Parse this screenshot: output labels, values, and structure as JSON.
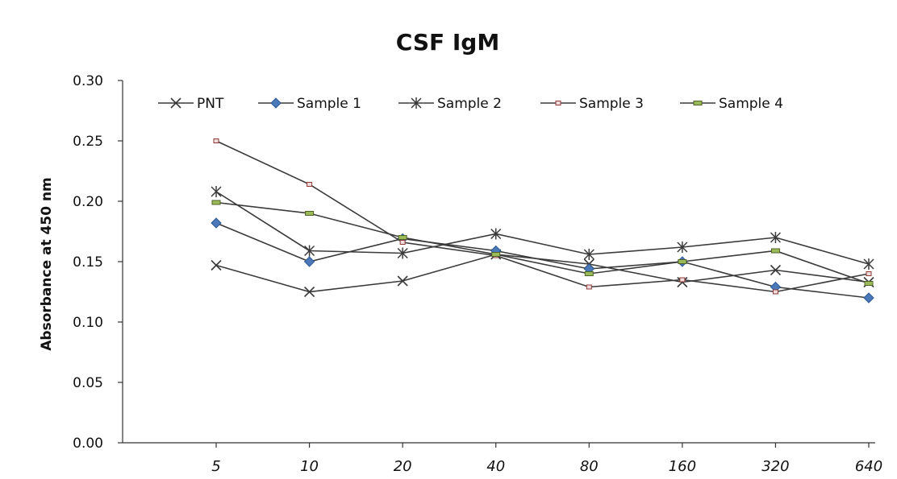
{
  "chart_data": {
    "type": "line",
    "title": "CSF IgM",
    "ylabel": "Absorbance at 450 nm",
    "xlabel": "",
    "categories": [
      "5",
      "10",
      "20",
      "40",
      "80",
      "160",
      "320",
      "640"
    ],
    "ylim": [
      0,
      0.3
    ],
    "yticks": [
      "0.00",
      "0.05",
      "0.10",
      "0.15",
      "0.20",
      "0.25",
      "0.30"
    ],
    "grid": false,
    "legend_position": "top",
    "series": [
      {
        "name": "PNT",
        "marker": "x",
        "color": "#3a3a3a",
        "values": [
          0.147,
          0.125,
          0.134,
          0.156,
          0.148,
          0.133,
          0.143,
          0.133
        ]
      },
      {
        "name": "Sample 1",
        "marker": "diamond",
        "color": "#4a78b8",
        "values": [
          0.182,
          0.15,
          0.169,
          0.159,
          0.144,
          0.15,
          0.129,
          0.12
        ]
      },
      {
        "name": "Sample 2",
        "marker": "star",
        "color": "#3a3a3a",
        "values": [
          0.208,
          0.159,
          0.157,
          0.173,
          0.156,
          0.162,
          0.17,
          0.148
        ]
      },
      {
        "name": "Sample 3",
        "marker": "dash-red",
        "color": "#c0504d",
        "values": [
          0.25,
          0.214,
          0.166,
          0.155,
          0.129,
          0.135,
          0.125,
          0.14
        ]
      },
      {
        "name": "Sample 4",
        "marker": "dash-green",
        "color": "#9bbb59",
        "values": [
          0.199,
          0.19,
          0.17,
          0.156,
          0.14,
          0.15,
          0.159,
          0.132
        ]
      }
    ]
  }
}
